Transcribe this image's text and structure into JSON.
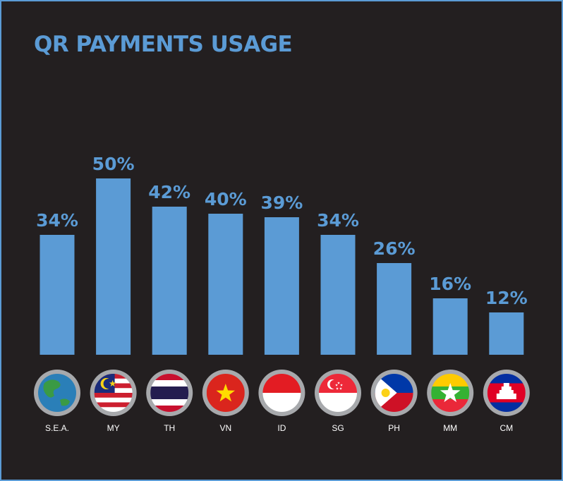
{
  "chart_data": {
    "type": "bar",
    "title": "QR PAYMENTS USAGE",
    "categories": [
      "S.E.A.",
      "MY",
      "TH",
      "VN",
      "ID",
      "SG",
      "PH",
      "MM",
      "CM"
    ],
    "values": [
      34,
      50,
      42,
      40,
      39,
      34,
      26,
      16,
      12
    ],
    "value_labels": [
      "34%",
      "50%",
      "42%",
      "40%",
      "39%",
      "34%",
      "26%",
      "16%",
      "12%"
    ],
    "color": "#5b9bd5"
  }
}
